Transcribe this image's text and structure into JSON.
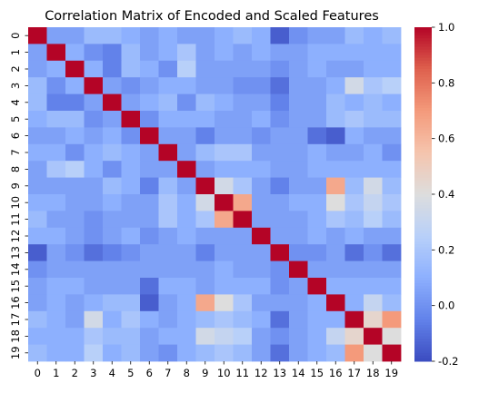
{
  "chart_data": {
    "type": "heatmap",
    "title": "Correlation Matrix of Encoded and Scaled Features",
    "x_labels": [
      "0",
      "1",
      "2",
      "3",
      "4",
      "5",
      "6",
      "7",
      "8",
      "9",
      "10",
      "11",
      "12",
      "13",
      "14",
      "15",
      "16",
      "17",
      "18",
      "19"
    ],
    "y_labels": [
      "0",
      "1",
      "2",
      "3",
      "4",
      "5",
      "6",
      "7",
      "8",
      "9",
      "10",
      "11",
      "12",
      "13",
      "14",
      "15",
      "16",
      "17",
      "18",
      "19"
    ],
    "vmin": -0.2,
    "vmax": 1.0,
    "colormap": "coolwarm",
    "colorbar_ticks": [
      "1.0",
      "0.8",
      "0.6",
      "0.4",
      "0.2",
      "0.0",
      "-0.2"
    ],
    "matrix": [
      [
        1.0,
        0.05,
        0.05,
        0.15,
        0.15,
        0.1,
        0.05,
        0.1,
        0.05,
        0.05,
        0.1,
        0.15,
        0.1,
        -0.15,
        0.0,
        0.05,
        0.05,
        0.15,
        0.1,
        0.15
      ],
      [
        0.05,
        1.0,
        0.1,
        0.0,
        -0.05,
        0.15,
        0.05,
        0.1,
        0.2,
        0.05,
        0.1,
        0.05,
        0.1,
        0.05,
        0.05,
        0.1,
        0.1,
        0.1,
        0.1,
        0.1
      ],
      [
        0.05,
        0.1,
        1.0,
        0.1,
        -0.05,
        0.15,
        0.1,
        0.0,
        0.25,
        0.05,
        0.05,
        0.05,
        0.05,
        0.0,
        0.05,
        0.1,
        0.05,
        0.05,
        0.1,
        0.1
      ],
      [
        0.15,
        0.0,
        0.1,
        1.0,
        0.05,
        0.0,
        0.05,
        0.1,
        0.1,
        0.05,
        0.05,
        0.0,
        0.0,
        -0.1,
        0.05,
        0.05,
        0.1,
        0.35,
        0.2,
        0.25
      ],
      [
        0.15,
        -0.05,
        -0.05,
        0.05,
        1.0,
        0.05,
        0.1,
        0.15,
        0.0,
        0.15,
        0.1,
        0.05,
        0.05,
        -0.05,
        0.05,
        0.05,
        0.15,
        0.1,
        0.15,
        0.1
      ],
      [
        0.1,
        0.15,
        0.15,
        0.0,
        0.05,
        1.0,
        0.0,
        0.1,
        0.1,
        0.1,
        0.05,
        0.05,
        0.1,
        0.0,
        0.05,
        0.05,
        0.15,
        0.2,
        0.15,
        0.15
      ],
      [
        0.05,
        0.05,
        0.1,
        0.05,
        0.1,
        0.0,
        1.0,
        0.05,
        0.05,
        -0.05,
        0.05,
        0.05,
        0.0,
        0.05,
        0.05,
        -0.1,
        -0.15,
        0.1,
        0.05,
        0.05
      ],
      [
        0.1,
        0.1,
        0.0,
        0.1,
        0.15,
        0.1,
        0.05,
        1.0,
        0.05,
        0.15,
        0.2,
        0.2,
        0.05,
        0.05,
        0.05,
        0.1,
        0.05,
        0.05,
        0.1,
        0.0
      ],
      [
        0.05,
        0.2,
        0.25,
        0.1,
        0.0,
        0.1,
        0.05,
        0.05,
        1.0,
        0.05,
        0.1,
        0.1,
        0.1,
        0.05,
        0.05,
        0.1,
        0.1,
        0.1,
        0.1,
        0.1
      ],
      [
        0.05,
        0.05,
        0.05,
        0.05,
        0.15,
        0.1,
        -0.05,
        0.15,
        0.05,
        1.0,
        0.35,
        0.2,
        0.05,
        -0.05,
        0.05,
        0.05,
        0.65,
        0.15,
        0.35,
        0.15
      ],
      [
        0.1,
        0.1,
        0.05,
        0.05,
        0.1,
        0.05,
        0.05,
        0.2,
        0.1,
        0.35,
        1.0,
        0.65,
        0.05,
        0.05,
        0.1,
        0.1,
        0.4,
        0.2,
        0.3,
        0.2
      ],
      [
        0.15,
        0.05,
        0.05,
        0.0,
        0.05,
        0.05,
        0.05,
        0.2,
        0.1,
        0.2,
        0.65,
        1.0,
        0.05,
        0.05,
        0.05,
        0.1,
        0.2,
        0.15,
        0.25,
        0.15
      ],
      [
        0.1,
        0.1,
        0.05,
        0.0,
        0.05,
        0.1,
        0.0,
        0.05,
        0.1,
        0.05,
        0.05,
        0.05,
        1.0,
        0.05,
        0.05,
        0.1,
        0.05,
        0.1,
        0.05,
        0.05
      ],
      [
        -0.15,
        0.05,
        0.0,
        -0.1,
        -0.05,
        0.0,
        0.05,
        0.05,
        0.05,
        -0.05,
        0.05,
        0.05,
        0.05,
        1.0,
        0.0,
        0.0,
        0.05,
        -0.1,
        0.0,
        -0.1
      ],
      [
        0.0,
        0.05,
        0.05,
        0.05,
        0.05,
        0.05,
        0.05,
        0.05,
        0.05,
        0.05,
        0.1,
        0.05,
        0.05,
        0.0,
        1.0,
        0.05,
        0.05,
        0.05,
        0.05,
        0.05
      ],
      [
        0.05,
        0.1,
        0.1,
        0.05,
        0.05,
        0.05,
        -0.1,
        0.1,
        0.1,
        0.05,
        0.1,
        0.1,
        0.1,
        0.0,
        0.05,
        1.0,
        0.1,
        0.1,
        0.1,
        0.1
      ],
      [
        0.05,
        0.1,
        0.05,
        0.1,
        0.15,
        0.15,
        -0.15,
        0.05,
        0.1,
        0.65,
        0.4,
        0.2,
        0.05,
        0.05,
        0.05,
        0.1,
        1.0,
        0.1,
        0.3,
        0.15
      ],
      [
        0.15,
        0.1,
        0.05,
        0.35,
        0.1,
        0.2,
        0.1,
        0.05,
        0.1,
        0.15,
        0.2,
        0.15,
        0.1,
        -0.1,
        0.05,
        0.1,
        0.1,
        1.0,
        0.45,
        0.7
      ],
      [
        0.1,
        0.1,
        0.1,
        0.2,
        0.15,
        0.15,
        0.05,
        0.1,
        0.1,
        0.35,
        0.3,
        0.25,
        0.05,
        0.0,
        0.05,
        0.1,
        0.3,
        0.45,
        1.0,
        0.4
      ],
      [
        0.15,
        0.1,
        0.1,
        0.25,
        0.1,
        0.15,
        0.05,
        0.0,
        0.1,
        0.15,
        0.2,
        0.15,
        0.05,
        -0.1,
        0.05,
        0.1,
        0.15,
        0.7,
        0.4,
        1.0
      ]
    ]
  }
}
